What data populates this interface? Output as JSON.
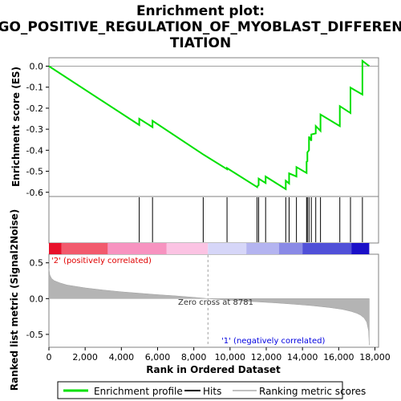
{
  "chart_data": {
    "type": "line",
    "title_lines": [
      "Enrichment plot:",
      "GO_POSITIVE_REGULATION_OF_MYOBLAST_DIFFEREN",
      "TIATION"
    ],
    "top_panel": {
      "ylabel": "Enrichment score (ES)",
      "ylim": [
        -0.62,
        0.04
      ],
      "yticks": [
        0.0,
        -0.1,
        -0.2,
        -0.3,
        -0.4,
        -0.5,
        -0.6
      ],
      "ytick_labels": [
        "0.0",
        "-0.1",
        "-0.2",
        "-0.3",
        "-0.4",
        "-0.5",
        "-0.6"
      ],
      "series": [
        {
          "name": "Enrichment profile",
          "color": "#00e000",
          "x": [
            0,
            4987,
            4987,
            5720,
            5720,
            8519,
            8519,
            9834,
            9834,
            11493,
            11493,
            11580,
            11580,
            11965,
            11965,
            13077,
            13077,
            13261,
            13261,
            13667,
            13667,
            14227,
            14227,
            14271,
            14271,
            14360,
            14360,
            14488,
            14488,
            14733,
            14733,
            14995,
            14995,
            16062,
            16062,
            16650,
            16650,
            17309,
            17309,
            17687
          ],
          "y": [
            0.0,
            -0.28,
            -0.25,
            -0.29,
            -0.26,
            -0.42,
            -0.42,
            -0.49,
            -0.485,
            -0.575,
            -0.573,
            -0.566,
            -0.535,
            -0.556,
            -0.525,
            -0.585,
            -0.545,
            -0.558,
            -0.51,
            -0.525,
            -0.48,
            -0.508,
            -0.455,
            -0.452,
            -0.41,
            -0.4,
            -0.335,
            -0.355,
            -0.325,
            -0.32,
            -0.285,
            -0.308,
            -0.23,
            -0.285,
            -0.19,
            -0.223,
            -0.102,
            -0.135,
            0.025,
            0.0
          ]
        }
      ]
    },
    "hits": [
      4987,
      5720,
      8519,
      9834,
      11493,
      11580,
      11965,
      13077,
      13261,
      13667,
      14227,
      14271,
      14360,
      14488,
      14733,
      14995,
      16062,
      16650,
      17309
    ],
    "bottom_panel": {
      "ylabel": "Ranked list metric (Signal2Noise)",
      "ylim": [
        -0.68,
        0.62
      ],
      "yticks": [
        0.5,
        0.0,
        -0.5
      ],
      "ytick_labels": [
        "0.5",
        "0.0",
        "-0.5"
      ],
      "zero_cross_label": "Zero cross at 8781",
      "zero_cross": 8781,
      "positive_label": "'2' (positively correlated)",
      "negative_label": "'1' (negatively correlated)",
      "metric_curve": {
        "x": [
          0,
          50,
          150,
          300,
          600,
          1000,
          2000,
          3000,
          4000,
          5000,
          6000,
          7000,
          8000,
          8781,
          9500,
          10500,
          11500,
          12500,
          13500,
          14500,
          15500,
          16200,
          16700,
          17000,
          17200,
          17400,
          17550,
          17650,
          17687
        ],
        "y": [
          0.42,
          0.33,
          0.28,
          0.25,
          0.22,
          0.19,
          0.15,
          0.12,
          0.095,
          0.075,
          0.055,
          0.038,
          0.018,
          0.0,
          -0.015,
          -0.03,
          -0.045,
          -0.06,
          -0.078,
          -0.098,
          -0.125,
          -0.15,
          -0.18,
          -0.205,
          -0.23,
          -0.27,
          -0.33,
          -0.45,
          -0.65
        ]
      }
    },
    "xlabel": "Rank in Ordered Dataset",
    "xlim": [
      0,
      18200
    ],
    "xticks": [
      0,
      2000,
      4000,
      6000,
      8000,
      10000,
      12000,
      14000,
      16000,
      18000
    ],
    "xtick_labels": [
      "0",
      "2,000",
      "4,000",
      "6,000",
      "8,000",
      "10,000",
      "12,000",
      "14,000",
      "16,000",
      "18,000"
    ],
    "n_genes": 17687,
    "color_bar": {
      "segments": [
        {
          "x0": 0,
          "x1": 700,
          "color": "#e8102a"
        },
        {
          "x0": 700,
          "x1": 3250,
          "color": "#f25a6d"
        },
        {
          "x0": 3250,
          "x1": 6500,
          "color": "#f793c0"
        },
        {
          "x0": 6500,
          "x1": 8781,
          "color": "#fbc3e3"
        },
        {
          "x0": 8781,
          "x1": 10900,
          "color": "#d6d6f8"
        },
        {
          "x0": 10900,
          "x1": 12700,
          "color": "#b4b4f0"
        },
        {
          "x0": 12700,
          "x1": 14000,
          "color": "#8a8ae6"
        },
        {
          "x0": 14000,
          "x1": 16700,
          "color": "#5050d8"
        },
        {
          "x0": 16700,
          "x1": 17687,
          "color": "#1a10c8"
        }
      ]
    },
    "legend": {
      "placement": "bottom",
      "entries": [
        {
          "label": "Enrichment profile",
          "color": "#00e000"
        },
        {
          "label": "Hits",
          "color": "#000000"
        },
        {
          "label": "Ranking metric scores",
          "color": "#c0c0c0"
        }
      ]
    },
    "colors": {
      "profile": "#00e000",
      "metric_fill": "#b4b4b4",
      "positive_text": "#e00000",
      "negative_text": "#0000e0"
    }
  }
}
